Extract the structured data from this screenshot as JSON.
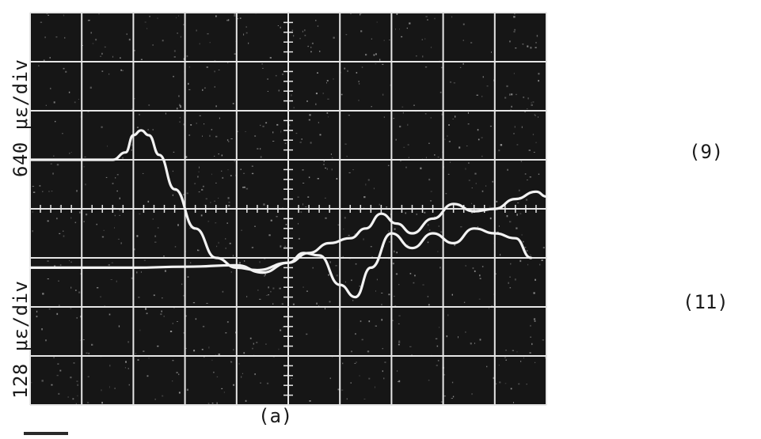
{
  "chart_data": {
    "type": "line",
    "title": "",
    "caption": "(a)",
    "y_axis_labels": [
      "640 με/div",
      "128 με/div"
    ],
    "grid": true,
    "grid_divisions": {
      "x": 10,
      "y": 8
    },
    "xlim": [
      0,
      10
    ],
    "ylim": [
      0,
      8
    ],
    "colors": {
      "screen": "#161616",
      "grid": "#e6e6e6",
      "trace": "#f2f2f2"
    },
    "series": [
      {
        "name": "(9)",
        "x": [
          0,
          1.6,
          1.85,
          2.0,
          2.15,
          2.3,
          2.5,
          2.8,
          3.2,
          3.6,
          4.0,
          4.4,
          5.0,
          5.4,
          5.8,
          6.2,
          6.5,
          6.8,
          7.1,
          7.4,
          7.8,
          8.2,
          8.6,
          9.0,
          9.4,
          9.8,
          10.0
        ],
        "y": [
          5.0,
          5.0,
          5.15,
          5.5,
          5.6,
          5.5,
          5.1,
          4.4,
          3.6,
          3.0,
          2.8,
          2.75,
          2.9,
          3.1,
          3.3,
          3.4,
          3.6,
          3.9,
          3.7,
          3.5,
          3.8,
          4.1,
          3.95,
          4.0,
          4.2,
          4.35,
          4.25
        ]
      },
      {
        "name": "(11)",
        "x": [
          0,
          1.0,
          2.0,
          3.0,
          4.0,
          4.5,
          5.0,
          5.3,
          5.6,
          6.0,
          6.3,
          6.6,
          7.0,
          7.4,
          7.8,
          8.2,
          8.6,
          9.0,
          9.4,
          9.7
        ],
        "y": [
          2.8,
          2.8,
          2.8,
          2.82,
          2.85,
          2.7,
          2.9,
          3.1,
          3.05,
          2.45,
          2.2,
          2.8,
          3.5,
          3.2,
          3.5,
          3.3,
          3.6,
          3.5,
          3.4,
          3.0
        ]
      }
    ]
  }
}
